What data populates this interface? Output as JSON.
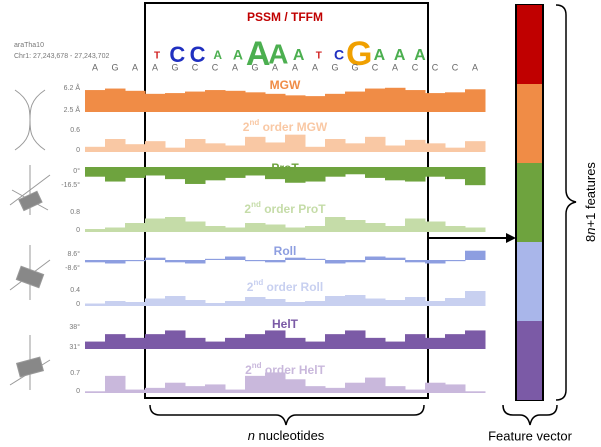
{
  "header": {
    "title": "PSSM / TFFM",
    "genome": "araTha10",
    "locus": "Chr1: 27,243,678 - 27,243,702"
  },
  "logo": [
    "T",
    "C",
    "C",
    "A",
    "A",
    "A",
    "A",
    "A",
    "T",
    "C",
    "G",
    "A",
    "A",
    "A"
  ],
  "sequence": [
    "A",
    "G",
    "A",
    "A",
    "G",
    "C",
    "C",
    "A",
    "G",
    "A",
    "A",
    "A",
    "G",
    "G",
    "C",
    "A",
    "C",
    "C",
    "C",
    "A"
  ],
  "tracks": [
    {
      "label": {
        "pre": "MGW"
      },
      "color": "#f08c46",
      "ticks": [
        "6.2 Å",
        "2.5 Å"
      ],
      "lim": [
        2.5,
        6.2
      ],
      "base": 2.5,
      "values": [
        5.4,
        5.6,
        5.3,
        4.9,
        5.0,
        5.2,
        5.4,
        5.3,
        5.1,
        4.9,
        4.7,
        4.6,
        4.9,
        5.2,
        5.6,
        5.7,
        5.4,
        5.0,
        5.1,
        5.5
      ]
    },
    {
      "label": {
        "num": "2",
        "sup": "nd",
        "pre": " order MGW"
      },
      "color": "#f9c8a4",
      "ticks": [
        "0.6",
        "0"
      ],
      "lim": [
        0,
        0.6
      ],
      "base": 0,
      "values": [
        0.12,
        0.3,
        0.18,
        0.25,
        0.1,
        0.3,
        0.2,
        0.15,
        0.35,
        0.22,
        0.4,
        0.12,
        0.3,
        0.2,
        0.35,
        0.15,
        0.28,
        0.2,
        0.1,
        0.25
      ]
    },
    {
      "label": {
        "pre": "ProT"
      },
      "color": "#6ea33e",
      "ticks": [
        "0°",
        "-16.5°"
      ],
      "lim": [
        -16.5,
        0
      ],
      "base": 0,
      "values": [
        -8,
        -12,
        -9,
        -7,
        -10,
        -14,
        -11,
        -9,
        -7,
        -10,
        -13,
        -12,
        -8,
        -6,
        -9,
        -11,
        -12,
        -8,
        -10,
        -15
      ]
    },
    {
      "label": {
        "num": "2",
        "sup": "nd",
        "pre": " order ProT"
      },
      "color": "#c5dca8",
      "ticks": [
        "0.8",
        "0"
      ],
      "lim": [
        0,
        0.8
      ],
      "base": 0,
      "values": [
        0.1,
        0.15,
        0.3,
        0.45,
        0.5,
        0.35,
        0.2,
        0.15,
        0.3,
        0.25,
        0.15,
        0.2,
        0.5,
        0.4,
        0.3,
        0.2,
        0.45,
        0.35,
        0.2,
        0.15
      ]
    },
    {
      "label": {
        "pre": "Roll"
      },
      "color": "#8d9ee0",
      "ticks": [
        "8.6°",
        "-8.6°"
      ],
      "lim": [
        -8.6,
        8.6
      ],
      "base": 0,
      "values": [
        -2,
        -3,
        -1,
        2,
        -2,
        -3,
        1,
        3,
        -1,
        -2,
        2,
        1,
        -3,
        -2,
        3,
        2,
        -2,
        -3,
        -1,
        8
      ]
    },
    {
      "label": {
        "num": "2",
        "sup": "nd",
        "pre": " order Roll"
      },
      "color": "#c8d0f0",
      "ticks": [
        "0.4",
        "0"
      ],
      "lim": [
        0,
        0.4
      ],
      "base": 0,
      "values": [
        0.05,
        0.1,
        0.08,
        0.15,
        0.2,
        0.12,
        0.06,
        0.1,
        0.18,
        0.14,
        0.08,
        0.1,
        0.2,
        0.22,
        0.15,
        0.12,
        0.18,
        0.1,
        0.16,
        0.3
      ]
    },
    {
      "label": {
        "pre": "HelT"
      },
      "color": "#7b5aa6",
      "ticks": [
        "38°",
        "31°"
      ],
      "lim": [
        31,
        38
      ],
      "base": 31,
      "values": [
        33,
        35,
        34,
        35,
        36,
        34,
        33,
        34,
        35,
        36,
        34,
        33,
        35,
        36,
        34,
        33,
        35,
        34,
        35,
        36
      ]
    },
    {
      "label": {
        "num": "2",
        "sup": "nd",
        "pre": " order HelT"
      },
      "color": "#c9b8dc",
      "ticks": [
        "0.7",
        "0"
      ],
      "lim": [
        0,
        0.7
      ],
      "base": 0,
      "values": [
        0.05,
        0.5,
        0.1,
        0.15,
        0.3,
        0.2,
        0.25,
        0.1,
        0.5,
        0.6,
        0.4,
        0.2,
        0.15,
        0.3,
        0.45,
        0.2,
        0.1,
        0.3,
        0.25,
        0.05
      ]
    }
  ],
  "bottom": {
    "var": "n",
    "rest": " nucleotides"
  },
  "vector": {
    "title": "Feature vector",
    "colors": [
      "#c00000",
      "#f08c46",
      "#6ea33e",
      "#a9b6ea",
      "#7b5aa6"
    ]
  },
  "features": {
    "num": "8",
    "var": "n",
    "rest": "+1 features"
  }
}
